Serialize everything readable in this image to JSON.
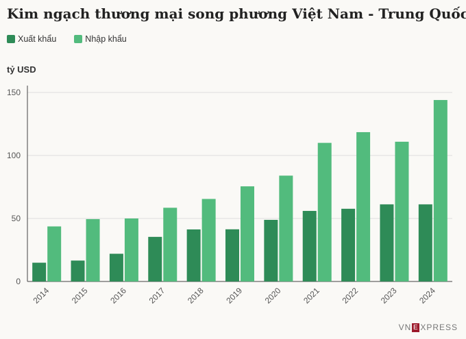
{
  "title": "Kim ngạch thương mại song phương Việt Nam - Trung Quốc",
  "unit_label": "tỷ USD",
  "brand": {
    "prefix": "VN",
    "mark": "E",
    "suffix": "XPRESS"
  },
  "colors": {
    "export": "#2e8b57",
    "import": "#52bb7d",
    "grid": "#dddddd",
    "axis": "#444444",
    "tick": "#555555"
  },
  "chart_data": {
    "type": "bar",
    "categories": [
      "2014",
      "2015",
      "2016",
      "2017",
      "2018",
      "2019",
      "2020",
      "2021",
      "2022",
      "2023",
      "2024"
    ],
    "series": [
      {
        "name": "Xuất khẩu",
        "values": [
          14.9,
          16.6,
          22.0,
          35.4,
          41.3,
          41.4,
          48.9,
          56.0,
          57.7,
          61.2,
          61.2
        ]
      },
      {
        "name": "Nhập khẩu",
        "values": [
          43.7,
          49.5,
          50.0,
          58.5,
          65.5,
          75.5,
          84.0,
          110.0,
          118.5,
          110.9,
          144.0
        ]
      }
    ],
    "xlabel": "",
    "ylabel": "tỷ USD",
    "ylim": [
      0,
      150
    ],
    "yticks": [
      0,
      50,
      100,
      150
    ],
    "grid": true,
    "legend": "top-left"
  }
}
